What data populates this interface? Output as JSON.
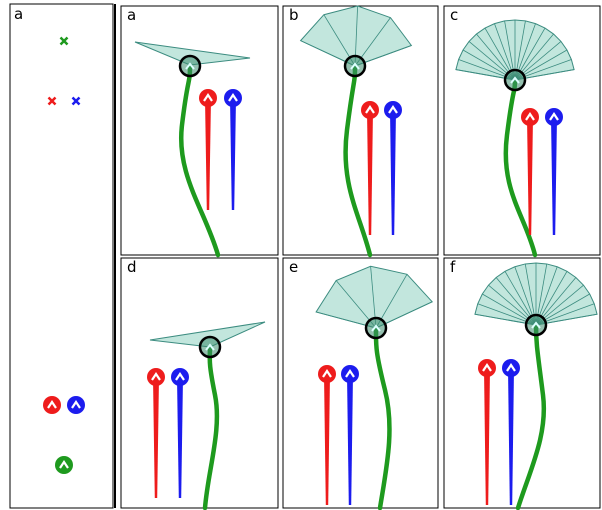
{
  "left_panel": {
    "label": "a"
  },
  "panels": [
    {
      "label": "a"
    },
    {
      "label": "b"
    },
    {
      "label": "c"
    },
    {
      "label": "d"
    },
    {
      "label": "e"
    },
    {
      "label": "f"
    }
  ]
}
